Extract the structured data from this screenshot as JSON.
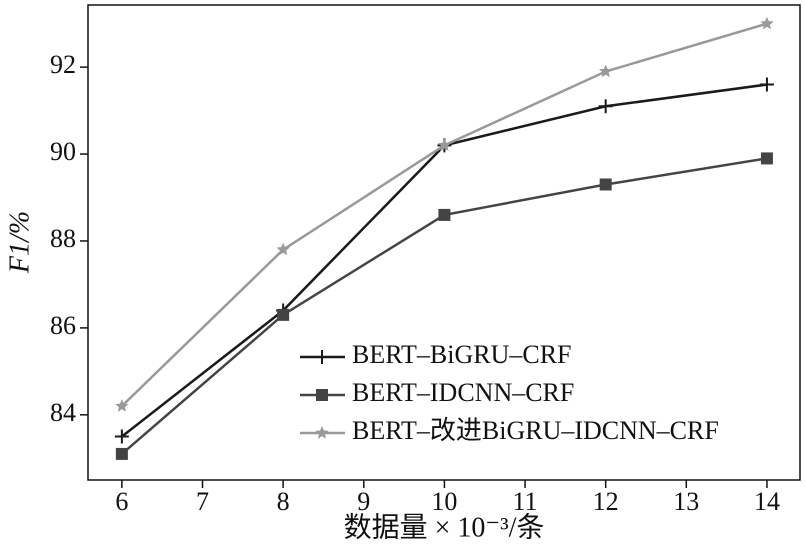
{
  "chart_data": {
    "type": "line",
    "xlabel": "数据量 × 10⁻³/条",
    "ylabel": "F1/%",
    "x": [
      6,
      8,
      10,
      12,
      14
    ],
    "series": [
      {
        "name": "BERT–BiGRU–CRF",
        "color": "#1a1a1a",
        "marker": "plus",
        "values": [
          83.5,
          86.4,
          90.2,
          91.1,
          91.6
        ]
      },
      {
        "name": "BERT–IDCNN–CRF",
        "color": "#444444",
        "marker": "square",
        "values": [
          83.1,
          86.3,
          88.6,
          89.3,
          89.9
        ]
      },
      {
        "name": "BERT–改进BiGRU–IDCNN–CRF",
        "color": "#999999",
        "marker": "star",
        "values": [
          84.2,
          87.8,
          90.2,
          91.9,
          93.0
        ]
      }
    ],
    "xlim": [
      5.58,
      14.41
    ],
    "ylim": [
      82.5,
      93.43
    ],
    "xticks": [
      6,
      7,
      8,
      9,
      10,
      11,
      12,
      13,
      14
    ],
    "yticks": [
      84,
      86,
      88,
      90,
      92
    ],
    "legend": "lower right"
  }
}
